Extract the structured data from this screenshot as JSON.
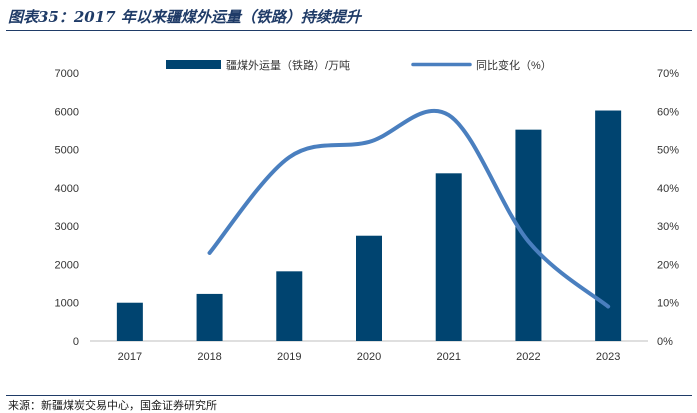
{
  "header": {
    "title": "图表35：2017 年以来疆煤外运量（铁路）持续提升"
  },
  "footer": {
    "source": "来源：新疆煤炭交易中心，国金证券研究所"
  },
  "colors": {
    "bar": "#004470",
    "line": "#4a7fbf",
    "title": "#1f3b67"
  },
  "chart_data": {
    "type": "bar",
    "categories": [
      "2017",
      "2018",
      "2019",
      "2020",
      "2021",
      "2022",
      "2023"
    ],
    "series": [
      {
        "name": "疆煤外运量（铁路）/万吨",
        "type": "bar",
        "axis": "left",
        "values": [
          1000,
          1230,
          1820,
          2750,
          4380,
          5520,
          6020
        ]
      },
      {
        "name": "同比变化（%）",
        "type": "line",
        "axis": "right",
        "values": [
          null,
          23,
          48,
          52,
          59,
          26,
          9
        ]
      }
    ],
    "y_left": {
      "min": 0,
      "max": 7000,
      "ticks": [
        "0",
        "1000",
        "2000",
        "3000",
        "4000",
        "5000",
        "6000",
        "7000"
      ]
    },
    "y_right": {
      "min": 0,
      "max": 70,
      "ticks": [
        "0%",
        "10%",
        "20%",
        "30%",
        "40%",
        "50%",
        "60%",
        "70%"
      ]
    },
    "legend": "top-center",
    "grid": false
  }
}
